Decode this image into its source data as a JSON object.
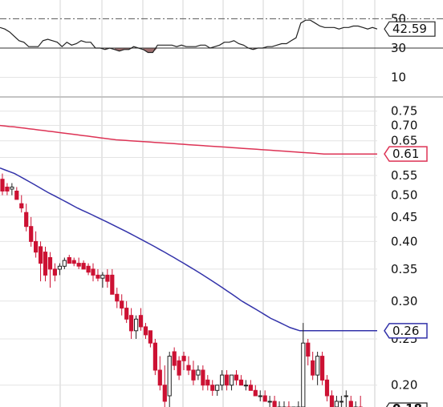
{
  "chart_data": [
    {
      "panel": "RSI indicator",
      "type": "line",
      "y_scale": "linear",
      "ylim": [
        0,
        60
      ],
      "y_ticks": [
        "50",
        "30",
        "10"
      ],
      "reference_lines": [
        50,
        30
      ],
      "current_value_tag": "42.59",
      "colors": {
        "line": "#222222",
        "below_30_fill": "#a07070"
      },
      "values": [
        44,
        43,
        41,
        38,
        35,
        34,
        31,
        31,
        31,
        35,
        36,
        35,
        34,
        31,
        34,
        32,
        33,
        35,
        34,
        34,
        30,
        30,
        29,
        30,
        29,
        28,
        29,
        29,
        31,
        30,
        29,
        27,
        27,
        32,
        32,
        32,
        32,
        31,
        32,
        31,
        31,
        31,
        32,
        32,
        30,
        31,
        32,
        34,
        34,
        35,
        33,
        32,
        30,
        29,
        30,
        30,
        31,
        31,
        32,
        33,
        33,
        35,
        37,
        47,
        49,
        49,
        47,
        45,
        44,
        44,
        44,
        43,
        44,
        44,
        45,
        45,
        44,
        43,
        44,
        43
      ]
    },
    {
      "panel": "Price with moving averages",
      "type": "candlestick",
      "y_scale": "log",
      "ylim": [
        0.18,
        0.8
      ],
      "y_ticks": [
        "0.75",
        "0.70",
        "0.65",
        "0.60",
        "0.55",
        "0.50",
        "0.45",
        "0.40",
        "0.35",
        "0.30",
        "0.25",
        "0.20"
      ],
      "bottom_tag": "0.18",
      "colors": {
        "down": "#cc1133",
        "up_body": "#ffffff",
        "up_outline": "#222222",
        "ma_long": "#dd3355",
        "ma_short": "#3333aa",
        "grid": "#cccccc"
      },
      "candles": [
        [
          0.54,
          0.555,
          0.5,
          0.51
        ],
        [
          0.52,
          0.53,
          0.5,
          0.51
        ],
        [
          0.515,
          0.53,
          0.5,
          0.52
        ],
        [
          0.51,
          0.52,
          0.49,
          0.49
        ],
        [
          0.48,
          0.5,
          0.46,
          0.47
        ],
        [
          0.46,
          0.48,
          0.42,
          0.43
        ],
        [
          0.43,
          0.45,
          0.39,
          0.4
        ],
        [
          0.4,
          0.42,
          0.37,
          0.38
        ],
        [
          0.39,
          0.4,
          0.33,
          0.36
        ],
        [
          0.38,
          0.39,
          0.33,
          0.34
        ],
        [
          0.37,
          0.38,
          0.32,
          0.35
        ],
        [
          0.35,
          0.36,
          0.33,
          0.34
        ],
        [
          0.35,
          0.36,
          0.34,
          0.355
        ],
        [
          0.355,
          0.37,
          0.35,
          0.365
        ],
        [
          0.37,
          0.375,
          0.36,
          0.36
        ],
        [
          0.365,
          0.37,
          0.355,
          0.36
        ],
        [
          0.36,
          0.37,
          0.35,
          0.355
        ],
        [
          0.36,
          0.365,
          0.35,
          0.35
        ],
        [
          0.355,
          0.36,
          0.34,
          0.345
        ],
        [
          0.35,
          0.36,
          0.33,
          0.34
        ],
        [
          0.34,
          0.35,
          0.33,
          0.335
        ],
        [
          0.335,
          0.345,
          0.32,
          0.34
        ],
        [
          0.34,
          0.35,
          0.32,
          0.33
        ],
        [
          0.34,
          0.35,
          0.31,
          0.31
        ],
        [
          0.31,
          0.32,
          0.29,
          0.3
        ],
        [
          0.3,
          0.31,
          0.28,
          0.29
        ],
        [
          0.29,
          0.3,
          0.27,
          0.275
        ],
        [
          0.28,
          0.29,
          0.25,
          0.26
        ],
        [
          0.26,
          0.28,
          0.25,
          0.275
        ],
        [
          0.28,
          0.29,
          0.26,
          0.265
        ],
        [
          0.265,
          0.27,
          0.25,
          0.255
        ],
        [
          0.26,
          0.26,
          0.24,
          0.245
        ],
        [
          0.245,
          0.25,
          0.21,
          0.215
        ],
        [
          0.215,
          0.23,
          0.195,
          0.2
        ],
        [
          0.2,
          0.22,
          0.18,
          0.185
        ],
        [
          0.19,
          0.235,
          0.18,
          0.23
        ],
        [
          0.235,
          0.24,
          0.215,
          0.22
        ],
        [
          0.225,
          0.23,
          0.205,
          0.21
        ],
        [
          0.23,
          0.235,
          0.215,
          0.225
        ],
        [
          0.22,
          0.23,
          0.21,
          0.215
        ],
        [
          0.215,
          0.225,
          0.2,
          0.205
        ],
        [
          0.21,
          0.22,
          0.205,
          0.215
        ],
        [
          0.215,
          0.22,
          0.195,
          0.2
        ],
        [
          0.205,
          0.21,
          0.195,
          0.2
        ],
        [
          0.2,
          0.205,
          0.19,
          0.195
        ],
        [
          0.195,
          0.2,
          0.19,
          0.2
        ],
        [
          0.2,
          0.215,
          0.195,
          0.21
        ],
        [
          0.21,
          0.215,
          0.195,
          0.2
        ],
        [
          0.2,
          0.21,
          0.195,
          0.21
        ],
        [
          0.21,
          0.215,
          0.2,
          0.205
        ],
        [
          0.205,
          0.21,
          0.2,
          0.2
        ],
        [
          0.2,
          0.205,
          0.195,
          0.2
        ],
        [
          0.2,
          0.205,
          0.195,
          0.195
        ],
        [
          0.195,
          0.2,
          0.19,
          0.19
        ],
        [
          0.19,
          0.195,
          0.185,
          0.19
        ],
        [
          0.19,
          0.195,
          0.185,
          0.185
        ],
        [
          0.185,
          0.19,
          0.18,
          0.185
        ],
        [
          0.185,
          0.19,
          0.18,
          0.18
        ],
        [
          0.18,
          0.185,
          0.175,
          0.18
        ],
        [
          0.18,
          0.185,
          0.175,
          0.18
        ],
        [
          0.18,
          0.185,
          0.175,
          0.175
        ],
        [
          0.175,
          0.18,
          0.17,
          0.18
        ],
        [
          0.18,
          0.185,
          0.175,
          0.18
        ],
        [
          0.18,
          0.27,
          0.17,
          0.245
        ],
        [
          0.245,
          0.25,
          0.22,
          0.23
        ],
        [
          0.225,
          0.235,
          0.205,
          0.21
        ],
        [
          0.21,
          0.235,
          0.2,
          0.23
        ],
        [
          0.23,
          0.235,
          0.2,
          0.205
        ],
        [
          0.205,
          0.21,
          0.185,
          0.19
        ],
        [
          0.19,
          0.195,
          0.17,
          0.175
        ],
        [
          0.18,
          0.19,
          0.17,
          0.185
        ],
        [
          0.185,
          0.19,
          0.18,
          0.185
        ],
        [
          0.19,
          0.195,
          0.18,
          0.19
        ],
        [
          0.185,
          0.19,
          0.175,
          0.18
        ],
        [
          0.18,
          0.185,
          0.175,
          0.18
        ],
        [
          0.18,
          0.19,
          0.17,
          0.175
        ],
        [
          0.175,
          0.18,
          0.17,
          0.175
        ],
        [
          0.175,
          0.18,
          0.17,
          0.175
        ],
        [
          0.175,
          0.18,
          0.17,
          0.175
        ]
      ],
      "ma_long": [
        0.7,
        0.698,
        0.696,
        0.695,
        0.693,
        0.691,
        0.689,
        0.687,
        0.685,
        0.683,
        0.681,
        0.679,
        0.677,
        0.675,
        0.673,
        0.671,
        0.669,
        0.667,
        0.665,
        0.663,
        0.661,
        0.659,
        0.657,
        0.655,
        0.653,
        0.652,
        0.651,
        0.65,
        0.649,
        0.648,
        0.647,
        0.646,
        0.645,
        0.644,
        0.643,
        0.642,
        0.641,
        0.64,
        0.639,
        0.638,
        0.637,
        0.636,
        0.635,
        0.634,
        0.633,
        0.632,
        0.631,
        0.63,
        0.629,
        0.628,
        0.627,
        0.626,
        0.625,
        0.624,
        0.623,
        0.622,
        0.621,
        0.62,
        0.619,
        0.618,
        0.617,
        0.616,
        0.615,
        0.614,
        0.613,
        0.612,
        0.611,
        0.61,
        0.61,
        0.61,
        0.61,
        0.61,
        0.61,
        0.61,
        0.61,
        0.61,
        0.61,
        0.61,
        0.61
      ],
      "ma_long_tag": "0.61",
      "ma_short": [
        0.57,
        0.565,
        0.56,
        0.555,
        0.548,
        0.541,
        0.534,
        0.527,
        0.52,
        0.513,
        0.506,
        0.5,
        0.494,
        0.488,
        0.482,
        0.476,
        0.47,
        0.465,
        0.46,
        0.455,
        0.45,
        0.445,
        0.44,
        0.435,
        0.43,
        0.425,
        0.42,
        0.415,
        0.41,
        0.405,
        0.4,
        0.395,
        0.39,
        0.385,
        0.38,
        0.375,
        0.37,
        0.365,
        0.36,
        0.355,
        0.35,
        0.345,
        0.34,
        0.335,
        0.33,
        0.325,
        0.32,
        0.315,
        0.31,
        0.305,
        0.3,
        0.296,
        0.292,
        0.288,
        0.284,
        0.28,
        0.276,
        0.273,
        0.27,
        0.267,
        0.264,
        0.262,
        0.26,
        0.26,
        0.26,
        0.26,
        0.26,
        0.26,
        0.26,
        0.26,
        0.26,
        0.26,
        0.26,
        0.26,
        0.26,
        0.26,
        0.26,
        0.26,
        0.26
      ],
      "ma_short_tag": "0.26"
    }
  ]
}
